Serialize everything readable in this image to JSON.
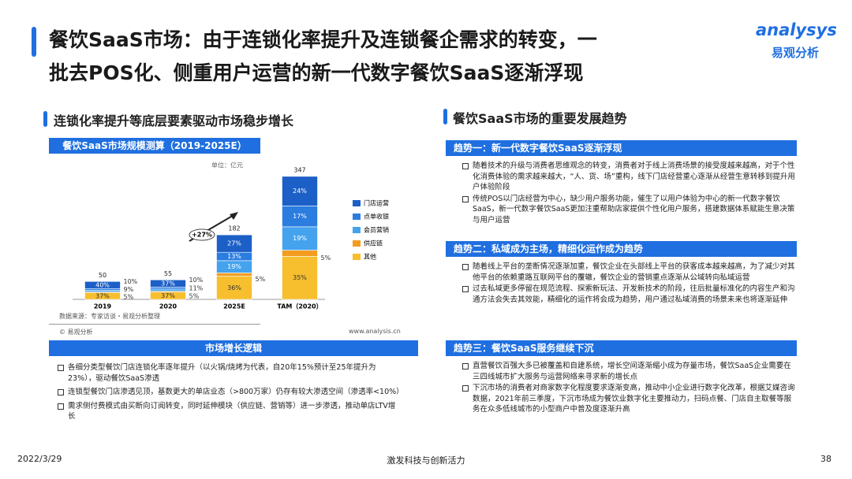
{
  "header": {
    "title_line1": "餐饮SaaS市场：由于连锁化率提升及连锁餐企需求的转变，一",
    "title_line2": "批去POS化、侧重用户运营的新一代数字餐饮SaaS逐渐浮现",
    "logo_en": "analysys",
    "logo_cn": "易观分析"
  },
  "left": {
    "heading": "连锁化率提升等底层要素驱动市场稳步增长",
    "chart_banner": "餐饮SaaS市场规模测算（2019-2025E）",
    "chart_data": {
      "type": "bar",
      "stacked": true,
      "unit": "单位：亿元",
      "annotation": "+27%",
      "categories": [
        "2019",
        "2020",
        "2025E",
        "TAM（2020）"
      ],
      "totals": [
        50,
        55,
        182,
        347
      ],
      "series": [
        {
          "name": "其他",
          "color": "#f7bf2e",
          "values": [
            37,
            37,
            36,
            35
          ],
          "value_labels": [
            "37%",
            "37%",
            "36%",
            "35%"
          ]
        },
        {
          "name": "供应链",
          "color": "#f39c1f",
          "values": [
            5,
            5,
            5,
            5
          ],
          "value_labels": [
            "5%",
            "5%",
            "5%",
            "5%"
          ]
        },
        {
          "name": "会员营销",
          "color": "#45a3ee",
          "values": [
            9,
            11,
            19,
            19
          ],
          "value_labels": [
            "9%",
            "11%",
            "19%",
            "19%"
          ]
        },
        {
          "name": "点单收银",
          "color": "#2b7de0",
          "values": [
            10,
            10,
            13,
            17
          ],
          "value_labels": [
            "10%",
            "10%",
            "13%",
            "17%"
          ]
        },
        {
          "name": "门店运营",
          "color": "#1c5fc7",
          "values": [
            40,
            37,
            27,
            24
          ],
          "value_labels": [
            "40%",
            "37%",
            "27%",
            "24%"
          ]
        }
      ]
    },
    "source": "数据来源：专家访谈・易观分析整理",
    "copyright": "© 易观分析",
    "website": "www.analysis.cn",
    "logic_banner": "市场增长逻辑",
    "logic_items": [
      "各细分类型餐饮门店连锁化率逐年提升（以火锅/烧烤为代表，自20年15%预计至25年提升为23%），驱动餐饮SaaS渗透",
      "连锁型餐饮门店渗透见顶，基数更大的单店业态（>800万家）仍存有较大渗透空间（渗透率<10%）",
      "需求侧付费模式由买断向订阅转变，同时延伸模块（供应链、营销等）进一步渗透，推动单店LTV增长"
    ]
  },
  "right": {
    "heading": "餐饮SaaS市场的重要发展趋势",
    "trends": [
      {
        "title": "趋势一：新一代数字餐饮SaaS逐渐浮现",
        "items": [
          "随着技术的升级与消费者思维观念的转变，消费者对于线上消费场景的接受度越来越高，对于个性化消费体验的需求越来越大，“人、货、场”重构，线下门店经营重心逐渐从经营生意转移到提升用户体验阶段",
          "传统POS以门店经营为中心，缺少用户服务功能，催生了以用户体验为中心的新一代数字餐饮SaaS，新一代数字餐饮SaaS更加注重帮助店家提供个性化用户服务，搭建数据体系赋能生意决策与用户运营"
        ]
      },
      {
        "title": "趋势二：私域成为主场，精细化运作成为趋势",
        "items": [
          "随着线上平台的垄断情况逐渐加重，餐饮企业在头部线上平台的获客成本越来越高，为了减少对其他平台的依赖重路互联网平台的覆辙，餐饮企业的营销重点逐渐从公域转向私域运营",
          "过去私域更多停留在规范流程、探索新玩法、开发新技术的阶段，往后批量标准化的内容生产和沟通方法会失去其效能，精细化的运作将会成为趋势，用户通过私域消费的场景未来也将逐渐延伸"
        ]
      },
      {
        "title": "趋势三：餐饮SaaS服务继续下沉",
        "items": [
          "直营餐饮百强大多已被覆盖和自建系统，增长空间逐渐缩小成为存量市场，餐饮SaaS企业需要在三四线城市扩大服务与运营网络来寻求新的增长点",
          "下沉市场的消费者对商家数字化程度要求逐渐变高，推动中小企业进行数字化改革，根据艾媒咨询数据，2021年前三季度，下沉市场成为餐饮业数字化主要推动力，扫码点餐、门店自主取餐等服务在众多低线城市的小型商户中普及度逐渐升高"
        ]
      }
    ]
  },
  "footer": {
    "date": "2022/3/29",
    "slogan": "激发科技与创新活力",
    "page": "38"
  }
}
